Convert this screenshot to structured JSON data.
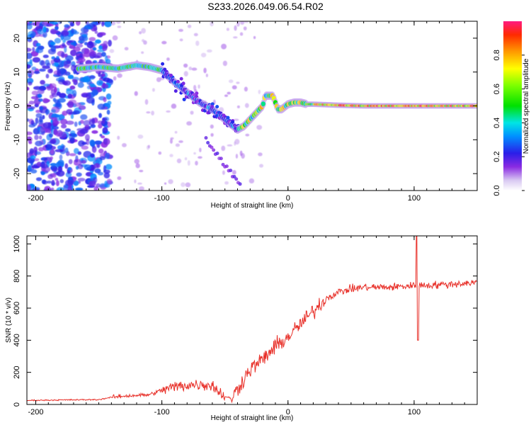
{
  "title": "S233.2026.049.06.54.R02",
  "chart_data": [
    {
      "type": "heatmap",
      "name": "spectrogram",
      "xlabel": "Height of straight line (km)",
      "ylabel": "Frequency (Hz)",
      "xlim": [
        -207,
        150
      ],
      "ylim": [
        -25,
        25
      ],
      "xticks": [
        -200,
        -100,
        0,
        100
      ],
      "yticks": [
        -20,
        -10,
        0,
        10,
        20
      ],
      "ridge": [
        [
          -165,
          11
        ],
        [
          -150,
          11.5
        ],
        [
          -135,
          11
        ],
        [
          -120,
          12
        ],
        [
          -110,
          11.5
        ],
        [
          -100,
          10.5
        ],
        [
          -90,
          7
        ],
        [
          -80,
          4
        ],
        [
          -70,
          1
        ],
        [
          -60,
          -1
        ],
        [
          -50,
          -4
        ],
        [
          -40,
          -7
        ],
        [
          -35,
          -6
        ],
        [
          -30,
          -4
        ],
        [
          -25,
          -2
        ],
        [
          -20,
          0
        ],
        [
          -18,
          3
        ],
        [
          -15,
          3
        ],
        [
          -12,
          3
        ],
        [
          -8,
          -1
        ],
        [
          -5,
          -1
        ],
        [
          0,
          0.5
        ],
        [
          5,
          1
        ],
        [
          10,
          1
        ],
        [
          15,
          0.5
        ],
        [
          20,
          0.5
        ],
        [
          40,
          0.2
        ],
        [
          60,
          0
        ],
        [
          80,
          0
        ],
        [
          100,
          0
        ],
        [
          120,
          0
        ],
        [
          150,
          0
        ]
      ],
      "colorbar": {
        "label": "Normalized spectral amplitude",
        "ticks": [
          "0.0",
          "0.2",
          "0.4",
          "0.6",
          "0.8"
        ],
        "range": [
          0,
          1
        ]
      }
    },
    {
      "type": "line",
      "name": "snr",
      "xlabel": "Height of straight line (km)",
      "ylabel": "SNR (10 * v/v)",
      "xlim": [
        -207,
        150
      ],
      "ylim": [
        0,
        1050
      ],
      "xticks": [
        -200,
        -100,
        0,
        100
      ],
      "yticks": [
        0,
        200,
        400,
        600,
        800,
        1000
      ],
      "series": [
        {
          "name": "SNR",
          "color": "#e8312a",
          "profile": [
            [
              -207,
              25
            ],
            [
              -180,
              28
            ],
            [
              -150,
              30
            ],
            [
              -140,
              45
            ],
            [
              -125,
              55
            ],
            [
              -110,
              60
            ],
            [
              -100,
              90
            ],
            [
              -90,
              110
            ],
            [
              -80,
              120
            ],
            [
              -70,
              125
            ],
            [
              -60,
              120
            ],
            [
              -55,
              80
            ],
            [
              -50,
              50
            ],
            [
              -45,
              35
            ],
            [
              -30,
              220
            ],
            [
              -20,
              280
            ],
            [
              -10,
              360
            ],
            [
              0,
              420
            ],
            [
              10,
              500
            ],
            [
              20,
              580
            ],
            [
              30,
              660
            ],
            [
              40,
              700
            ],
            [
              50,
              720
            ],
            [
              60,
              730
            ],
            [
              80,
              730
            ],
            [
              100,
              740
            ],
            [
              120,
              745
            ],
            [
              150,
              760
            ]
          ],
          "spike": {
            "x": 102,
            "max": 1050,
            "min": 400
          }
        }
      ]
    }
  ]
}
